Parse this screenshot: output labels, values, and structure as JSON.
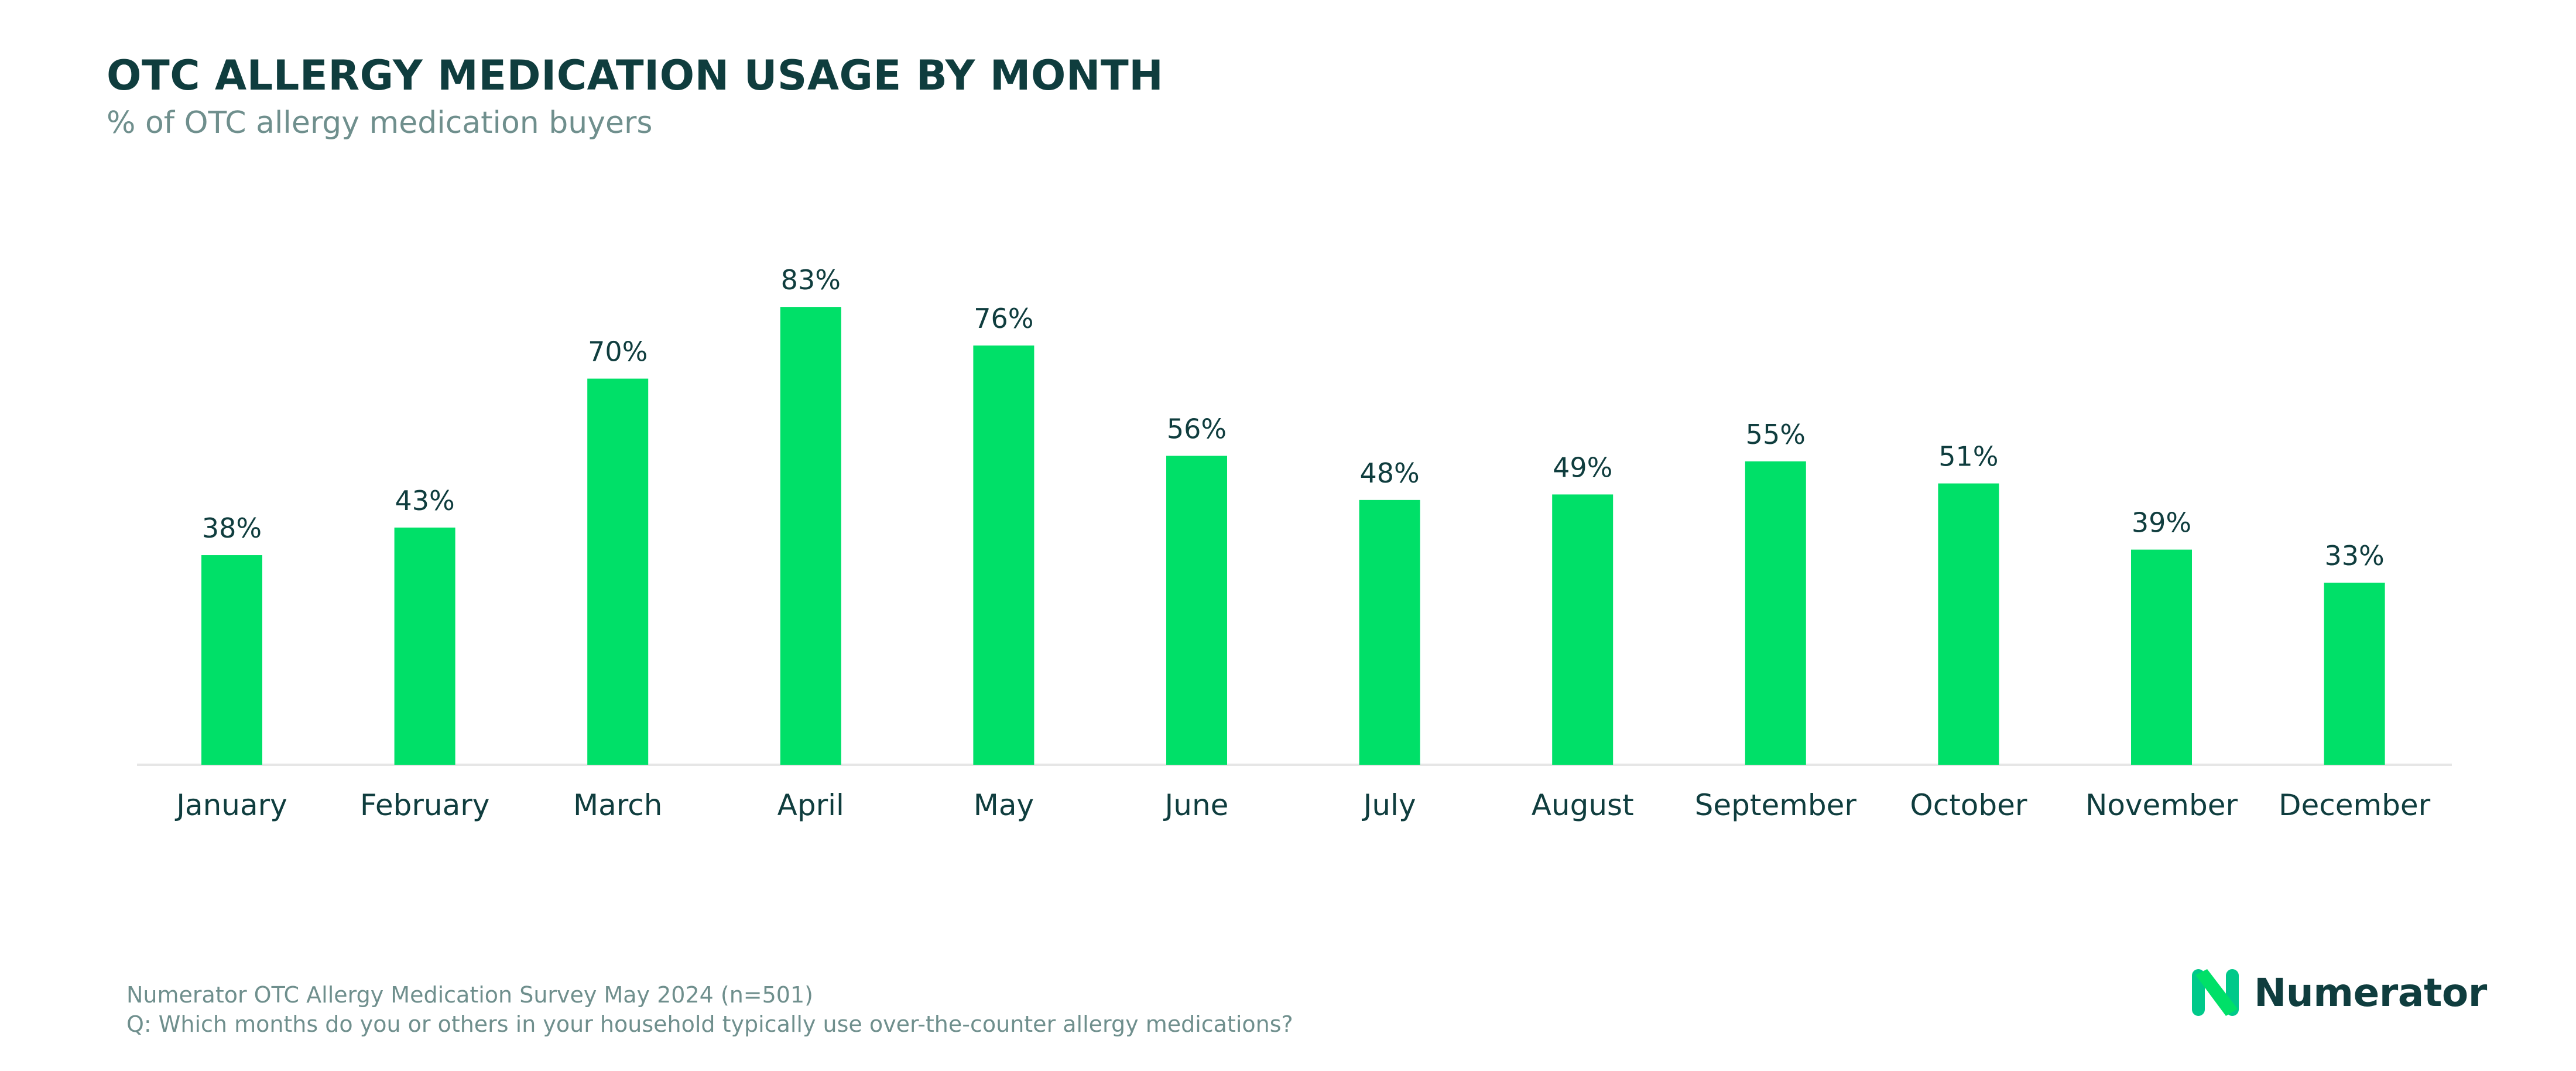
{
  "header": {
    "title": "OTC ALLERGY MEDICATION USAGE BY MONTH",
    "subtitle": "% of OTC allergy medication buyers"
  },
  "chart_data": {
    "type": "bar",
    "title": "OTC ALLERGY MEDICATION USAGE BY MONTH",
    "subtitle": "% of OTC allergy medication buyers",
    "categories": [
      "January",
      "February",
      "March",
      "April",
      "May",
      "June",
      "July",
      "August",
      "September",
      "October",
      "November",
      "December"
    ],
    "values": [
      38,
      43,
      70,
      83,
      76,
      56,
      48,
      49,
      55,
      51,
      39,
      33
    ],
    "data_labels": [
      "38%",
      "43%",
      "70%",
      "83%",
      "76%",
      "56%",
      "48%",
      "49%",
      "55%",
      "51%",
      "39%",
      "33%"
    ],
    "ylim": [
      0,
      100
    ],
    "grid": false,
    "legend": "none",
    "bar_color": "#00e068",
    "text_color": "#0f3d3e"
  },
  "footer": {
    "source": "Numerator OTC Allergy Medication Survey May 2024 (n=501)",
    "question": "Q: Which months do you or others in your household typically use over-the-counter allergy medications?"
  },
  "logo": {
    "text": "Numerator",
    "icon": "numerator-n-logo-icon"
  },
  "colors": {
    "accent": "#00e068",
    "title": "#0f3d3e",
    "muted": "#6f8f8d",
    "axis": "#e6e6e6"
  }
}
